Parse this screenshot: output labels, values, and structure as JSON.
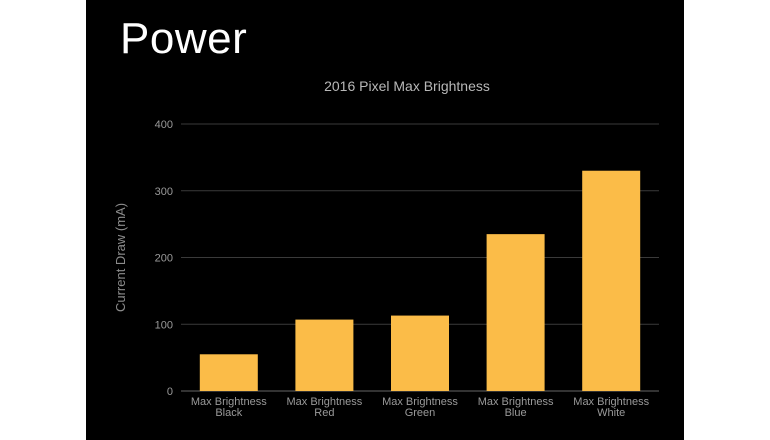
{
  "slide": {
    "title": "Power"
  },
  "chart_data": {
    "type": "bar",
    "title": "2016 Pixel Max Brightness",
    "ylabel": "Current Draw (mA)",
    "xlabel": "",
    "ylim": [
      0,
      400
    ],
    "yticks": [
      0,
      100,
      200,
      300,
      400
    ],
    "grid": true,
    "bar_color": "#fbbc48",
    "categories": [
      [
        "Max Brightness",
        "Black"
      ],
      [
        "Max Brightness",
        "Red"
      ],
      [
        "Max Brightness",
        "Green"
      ],
      [
        "Max Brightness",
        "Blue"
      ],
      [
        "Max Brightness",
        "White"
      ]
    ],
    "values": [
      55,
      107,
      113,
      235,
      330
    ]
  }
}
